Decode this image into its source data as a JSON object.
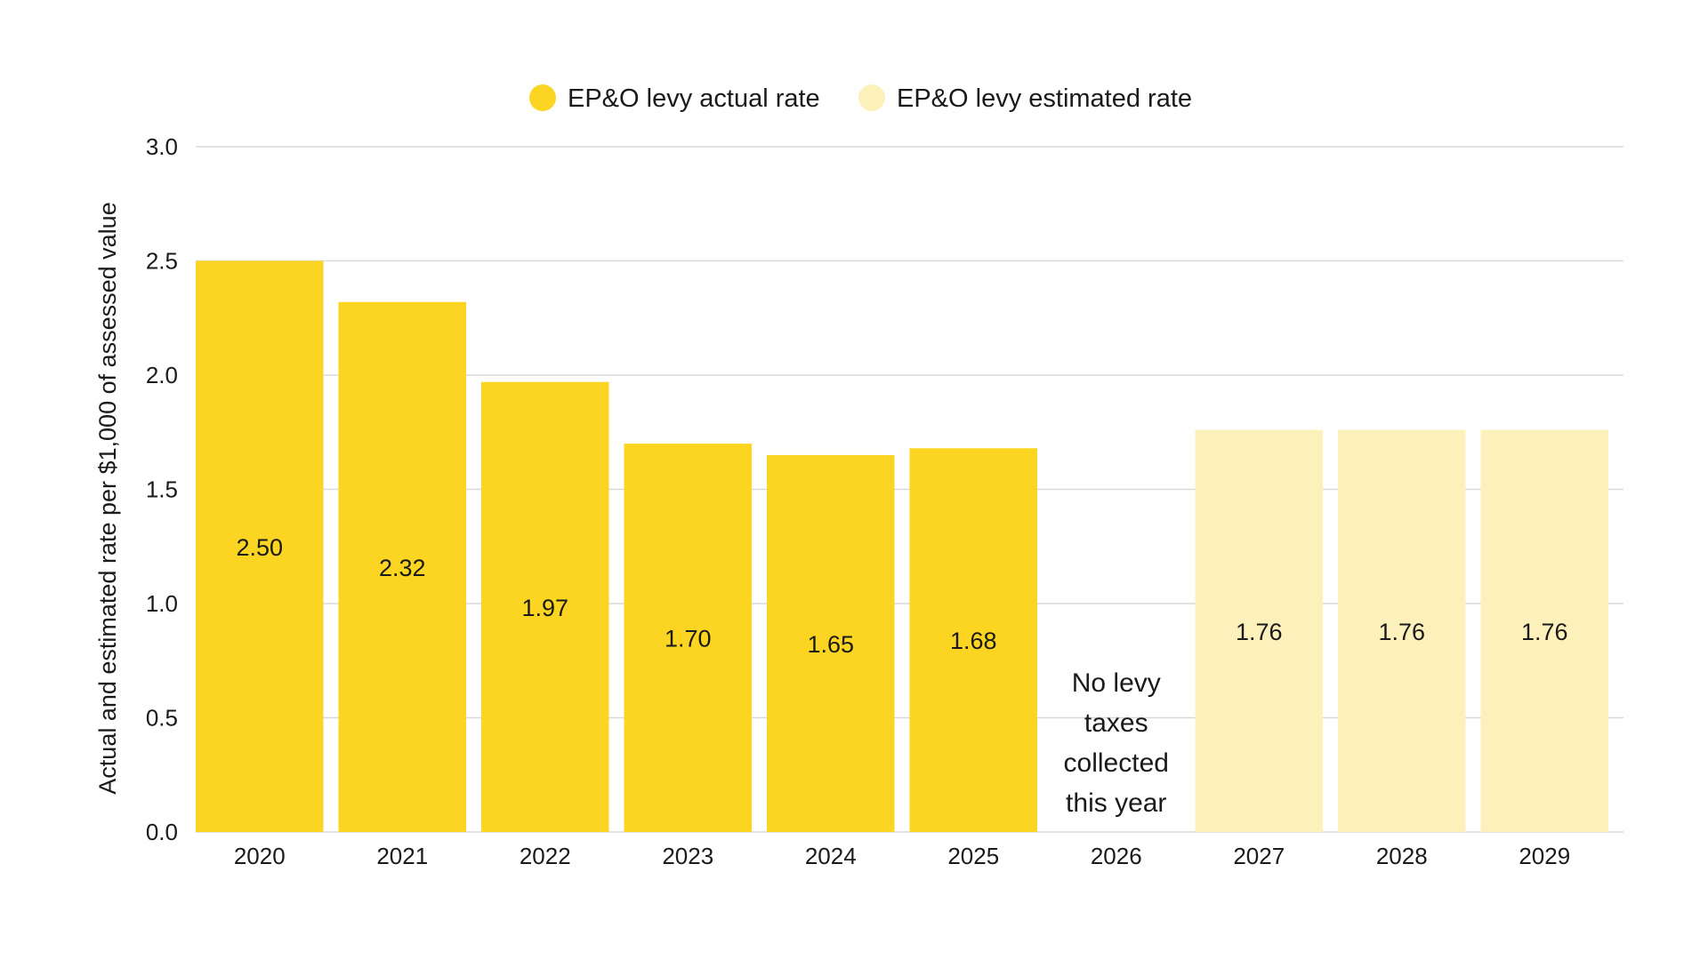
{
  "chart_data": {
    "type": "bar",
    "categories": [
      "2020",
      "2021",
      "2022",
      "2023",
      "2024",
      "2025",
      "2026",
      "2027",
      "2028",
      "2029"
    ],
    "series": [
      {
        "name": "EP&O levy actual rate",
        "color": "#fbd521",
        "values": [
          2.5,
          2.32,
          1.97,
          1.7,
          1.65,
          1.68,
          null,
          null,
          null,
          null
        ],
        "labels": [
          "2.50",
          "2.32",
          "1.97",
          "1.70",
          "1.65",
          "1.68",
          null,
          null,
          null,
          null
        ]
      },
      {
        "name": "EP&O levy estimated rate",
        "color": "#fcf1bb",
        "values": [
          null,
          null,
          null,
          null,
          null,
          null,
          null,
          1.76,
          1.76,
          1.76
        ],
        "labels": [
          null,
          null,
          null,
          null,
          null,
          null,
          null,
          "1.76",
          "1.76",
          "1.76"
        ]
      }
    ],
    "annotations": [
      {
        "category": "2026",
        "lines": [
          "No levy",
          "taxes",
          "collected",
          "this year"
        ]
      }
    ],
    "xlabel": "",
    "ylabel": "Actual and estimated rate per $1,000 of assessed value",
    "ylim": [
      0,
      3.0
    ],
    "yticks": [
      "0.0",
      "0.5",
      "1.0",
      "1.5",
      "2.0",
      "2.5",
      "3.0"
    ],
    "grid": true,
    "legend_position": "top"
  }
}
